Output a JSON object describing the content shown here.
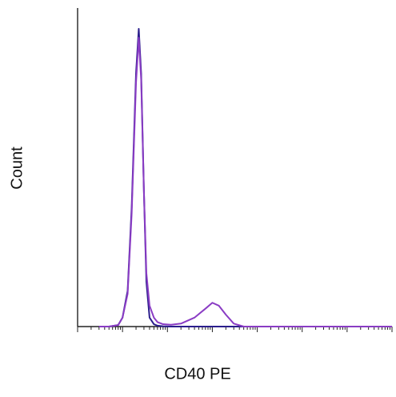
{
  "chart_data": {
    "type": "line",
    "title": "",
    "xlabel": "CD40 PE",
    "ylabel": "Count",
    "xscale": "log",
    "xlim": [
      0.1,
      1000000
    ],
    "ylim": [
      0,
      100
    ],
    "grid": false,
    "legend": "none",
    "series": [
      {
        "color": "#2b1e8c",
        "x": [
          0.3,
          0.5,
          0.8,
          1.0,
          1.3,
          1.6,
          2.0,
          2.3,
          2.6,
          3.0,
          3.4,
          4.0,
          5.0,
          6.0,
          8.0,
          12,
          30,
          100,
          1000,
          10000,
          100000,
          1000000
        ],
        "y": [
          0,
          0,
          0.5,
          3,
          12,
          40,
          85,
          100,
          85,
          45,
          15,
          3,
          0.8,
          0.3,
          0.1,
          0,
          0,
          0,
          0,
          0,
          0,
          0
        ]
      },
      {
        "color": "#8a3cc4",
        "x": [
          0.3,
          0.5,
          0.8,
          1.0,
          1.3,
          1.6,
          2.0,
          2.3,
          2.6,
          3.0,
          3.4,
          4.0,
          5.0,
          6.0,
          8.0,
          12,
          20,
          40,
          70,
          100,
          140,
          200,
          300,
          500,
          1000,
          10000,
          100000,
          1000000
        ],
        "y": [
          0,
          0,
          0.5,
          3,
          11,
          38,
          82,
          97,
          83,
          45,
          18,
          7,
          3,
          1.5,
          0.8,
          0.6,
          1,
          3,
          6,
          8,
          7,
          4,
          1,
          0,
          0,
          0,
          0,
          0
        ]
      }
    ]
  },
  "colors": {
    "axis": "#222222"
  }
}
